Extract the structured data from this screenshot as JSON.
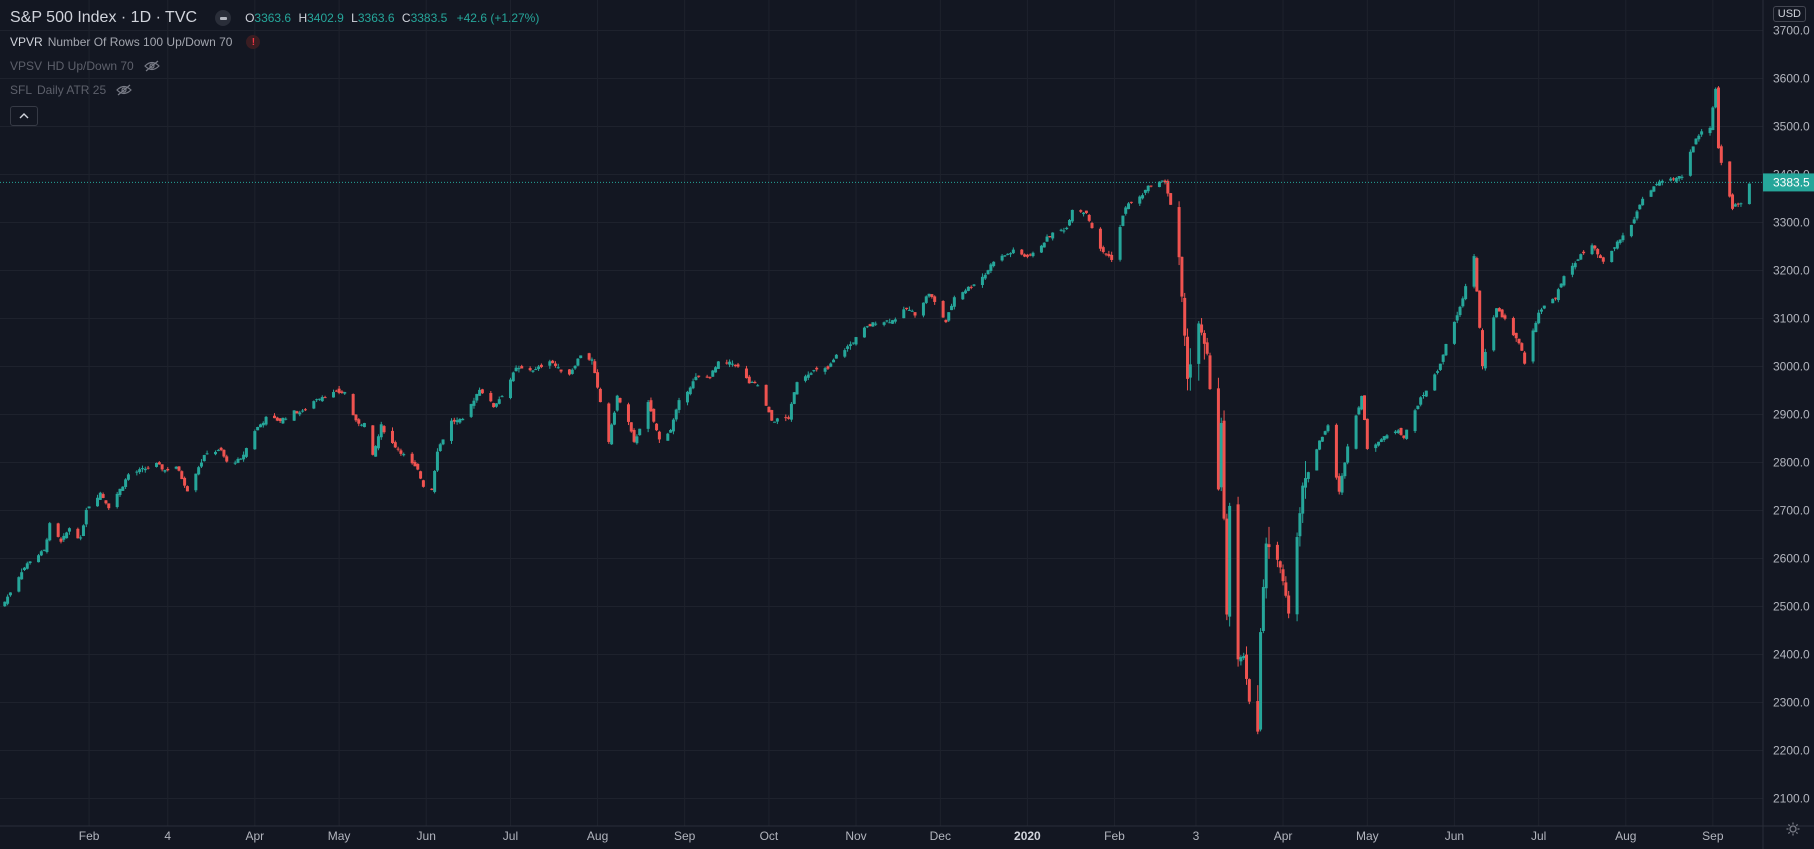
{
  "header": {
    "symbol_title": "S&P 500 Index · 1D · TVC",
    "ohlc": {
      "open_label": "O",
      "open": "3363.6",
      "high_label": "H",
      "high": "3402.9",
      "low_label": "L",
      "low": "3363.6",
      "close_label": "C",
      "close": "3383.5",
      "change": "+42.6 (+1.27%)"
    }
  },
  "indicators": [
    {
      "name": "VPVR",
      "params": "Number Of Rows 100 Up/Down 70",
      "visible": true,
      "icon": "warning-icon"
    },
    {
      "name": "VPSV",
      "params": "HD Up/Down 70",
      "visible": false,
      "icon": "eye-off-icon"
    },
    {
      "name": "SFL",
      "params": "Daily ATR 25",
      "visible": false,
      "icon": "eye-off-icon"
    }
  ],
  "currency": "USD",
  "colors": {
    "background": "#131722",
    "up": "#26a69a",
    "down": "#ef5350",
    "grid": "#1e222d",
    "text": "#b2b5be"
  },
  "chart_data": {
    "type": "candlestick",
    "interval": "1D",
    "y_axis": {
      "ticks": [
        2100,
        2200,
        2300,
        2400,
        2500,
        2600,
        2700,
        2800,
        2900,
        3000,
        3100,
        3200,
        3300,
        3400,
        3500,
        3600,
        3700
      ],
      "position": "right"
    },
    "x_axis": {
      "labels": [
        "Feb",
        "4",
        "Apr",
        "May",
        "Jun",
        "Jul",
        "Aug",
        "Sep",
        "Oct",
        "Nov",
        "Dec",
        "2020",
        "Feb",
        "3",
        "Apr",
        "May",
        "Jun",
        "Jul",
        "Aug",
        "Sep"
      ],
      "bold_labels": [
        "2020"
      ]
    },
    "last_price": 3383.5,
    "last_price_label": "3383.5",
    "grid": true,
    "close_path": [
      [
        "2019-01-02",
        2510
      ],
      [
        "2019-01-04",
        2531
      ],
      [
        "2019-01-08",
        2574
      ],
      [
        "2019-01-11",
        2596
      ],
      [
        "2019-01-16",
        2616
      ],
      [
        "2019-01-18",
        2670
      ],
      [
        "2019-01-22",
        2633
      ],
      [
        "2019-01-25",
        2664
      ],
      [
        "2019-01-29",
        2640
      ],
      [
        "2019-01-31",
        2704
      ],
      [
        "2019-02-05",
        2737
      ],
      [
        "2019-02-08",
        2708
      ],
      [
        "2019-02-13",
        2753
      ],
      [
        "2019-02-15",
        2775
      ],
      [
        "2019-02-20",
        2785
      ],
      [
        "2019-02-25",
        2796
      ],
      [
        "2019-02-28",
        2784
      ],
      [
        "2019-03-04",
        2792
      ],
      [
        "2019-03-08",
        2743
      ],
      [
        "2019-03-12",
        2792
      ],
      [
        "2019-03-15",
        2822
      ],
      [
        "2019-03-20",
        2824
      ],
      [
        "2019-03-22",
        2800
      ],
      [
        "2019-03-27",
        2805
      ],
      [
        "2019-04-01",
        2867
      ],
      [
        "2019-04-05",
        2892
      ],
      [
        "2019-04-10",
        2888
      ],
      [
        "2019-04-15",
        2905
      ],
      [
        "2019-04-18",
        2905
      ],
      [
        "2019-04-23",
        2934
      ],
      [
        "2019-04-26",
        2940
      ],
      [
        "2019-04-30",
        2946
      ],
      [
        "2019-05-03",
        2946
      ],
      [
        "2019-05-07",
        2884
      ],
      [
        "2019-05-10",
        2881
      ],
      [
        "2019-05-13",
        2812
      ],
      [
        "2019-05-16",
        2876
      ],
      [
        "2019-05-20",
        2840
      ],
      [
        "2019-05-23",
        2822
      ],
      [
        "2019-05-29",
        2783
      ],
      [
        "2019-05-31",
        2752
      ],
      [
        "2019-06-03",
        2744
      ],
      [
        "2019-06-05",
        2826
      ],
      [
        "2019-06-10",
        2886
      ],
      [
        "2019-06-14",
        2887
      ],
      [
        "2019-06-20",
        2954
      ],
      [
        "2019-06-25",
        2917
      ],
      [
        "2019-06-28",
        2941
      ],
      [
        "2019-07-03",
        2995
      ],
      [
        "2019-07-10",
        2993
      ],
      [
        "2019-07-15",
        3014
      ],
      [
        "2019-07-18",
        2995
      ],
      [
        "2019-07-22",
        2985
      ],
      [
        "2019-07-26",
        3025
      ],
      [
        "2019-07-30",
        3013
      ],
      [
        "2019-08-01",
        2953
      ],
      [
        "2019-08-05",
        2844
      ],
      [
        "2019-08-08",
        2938
      ],
      [
        "2019-08-12",
        2883
      ],
      [
        "2019-08-14",
        2840
      ],
      [
        "2019-08-19",
        2923
      ],
      [
        "2019-08-23",
        2847
      ],
      [
        "2019-08-27",
        2869
      ],
      [
        "2019-08-30",
        2926
      ],
      [
        "2019-09-05",
        2976
      ],
      [
        "2019-09-10",
        2979
      ],
      [
        "2019-09-13",
        3007
      ],
      [
        "2019-09-19",
        3006
      ],
      [
        "2019-09-24",
        2966
      ],
      [
        "2019-09-27",
        2961
      ],
      [
        "2019-10-02",
        2887
      ],
      [
        "2019-10-08",
        2893
      ],
      [
        "2019-10-11",
        2970
      ],
      [
        "2019-10-16",
        2990
      ],
      [
        "2019-10-22",
        2995
      ],
      [
        "2019-10-25",
        3022
      ],
      [
        "2019-10-30",
        3046
      ],
      [
        "2019-11-04",
        3078
      ],
      [
        "2019-11-08",
        3093
      ],
      [
        "2019-11-14",
        3096
      ],
      [
        "2019-11-19",
        3120
      ],
      [
        "2019-11-22",
        3110
      ],
      [
        "2019-11-27",
        3153
      ],
      [
        "2019-12-03",
        3093
      ],
      [
        "2019-12-06",
        3145
      ],
      [
        "2019-12-12",
        3168
      ],
      [
        "2019-12-17",
        3192
      ],
      [
        "2019-12-20",
        3221
      ],
      [
        "2019-12-27",
        3240
      ],
      [
        "2019-12-31",
        3230
      ],
      [
        "2020-01-03",
        3234
      ],
      [
        "2020-01-09",
        3274
      ],
      [
        "2020-01-15",
        3289
      ],
      [
        "2020-01-17",
        3329
      ],
      [
        "2020-01-22",
        3321
      ],
      [
        "2020-01-27",
        3243
      ],
      [
        "2020-01-31",
        3225
      ],
      [
        "2020-02-05",
        3334
      ],
      [
        "2020-02-10",
        3352
      ],
      [
        "2020-02-14",
        3380
      ],
      [
        "2020-02-19",
        3386
      ],
      [
        "2020-02-21",
        3337
      ],
      [
        "2020-02-24",
        3225
      ],
      [
        "2020-02-27",
        2978
      ],
      [
        "2020-03-02",
        3090
      ],
      [
        "2020-03-05",
        3023
      ],
      [
        "2020-03-09",
        2746
      ],
      [
        "2020-03-10",
        2882
      ],
      [
        "2020-03-12",
        2480
      ],
      [
        "2020-03-13",
        2711
      ],
      [
        "2020-03-16",
        2386
      ],
      [
        "2020-03-18",
        2398
      ],
      [
        "2020-03-20",
        2305
      ],
      [
        "2020-03-23",
        2237
      ],
      [
        "2020-03-24",
        2447
      ],
      [
        "2020-03-26",
        2630
      ],
      [
        "2020-03-31",
        2585
      ],
      [
        "2020-04-03",
        2489
      ],
      [
        "2020-04-08",
        2750
      ],
      [
        "2020-04-14",
        2846
      ],
      [
        "2020-04-17",
        2875
      ],
      [
        "2020-04-21",
        2737
      ],
      [
        "2020-04-24",
        2837
      ],
      [
        "2020-04-29",
        2939
      ],
      [
        "2020-05-01",
        2831
      ],
      [
        "2020-05-06",
        2848
      ],
      [
        "2020-05-12",
        2870
      ],
      [
        "2020-05-14",
        2852
      ],
      [
        "2020-05-19",
        2922
      ],
      [
        "2020-05-26",
        2991
      ],
      [
        "2020-05-29",
        3044
      ],
      [
        "2020-06-03",
        3122
      ],
      [
        "2020-06-08",
        3232
      ],
      [
        "2020-06-11",
        3002
      ],
      [
        "2020-06-16",
        3124
      ],
      [
        "2020-06-19",
        3097
      ],
      [
        "2020-06-24",
        3050
      ],
      [
        "2020-06-26",
        3009
      ],
      [
        "2020-07-01",
        3115
      ],
      [
        "2020-07-07",
        3145
      ],
      [
        "2020-07-10",
        3185
      ],
      [
        "2020-07-15",
        3226
      ],
      [
        "2020-07-20",
        3251
      ],
      [
        "2020-07-24",
        3215
      ],
      [
        "2020-07-29",
        3258
      ],
      [
        "2020-08-03",
        3294
      ],
      [
        "2020-08-07",
        3351
      ],
      [
        "2020-08-12",
        3380
      ],
      [
        "2020-08-18",
        3389
      ],
      [
        "2020-08-21",
        3397
      ],
      [
        "2020-08-26",
        3478
      ],
      [
        "2020-08-31",
        3500
      ],
      [
        "2020-09-02",
        3580
      ],
      [
        "2020-09-03",
        3455
      ],
      [
        "2020-09-04",
        3426
      ],
      [
        "2020-09-08",
        3331
      ],
      [
        "2020-09-10",
        3339
      ],
      [
        "2020-09-11",
        3341
      ],
      [
        "2020-09-14",
        3383
      ]
    ]
  }
}
